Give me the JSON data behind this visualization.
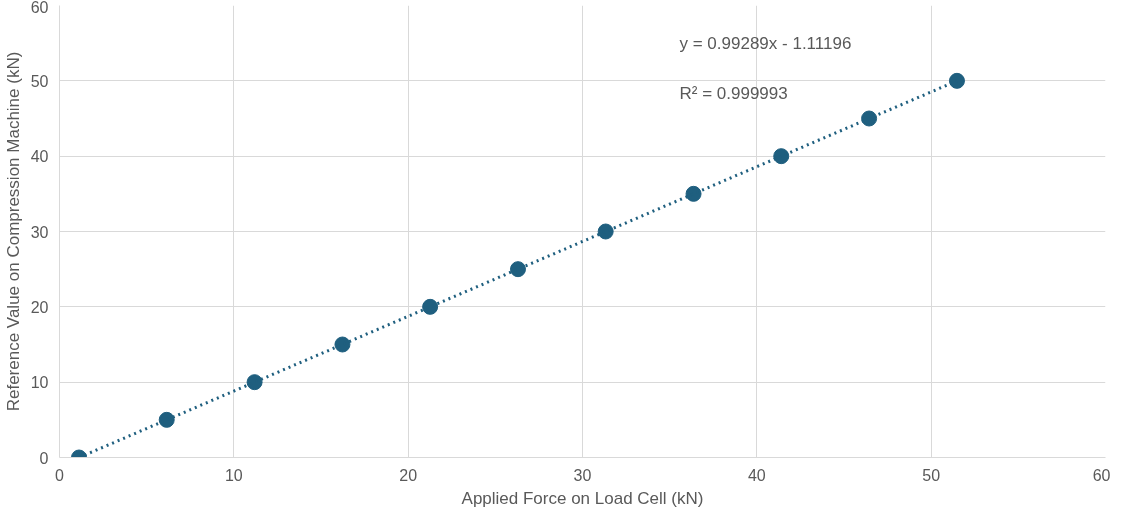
{
  "chart_data": {
    "type": "scatter",
    "xlabel": "Applied Force on Load Cell (kN)",
    "ylabel": "Reference Value on Compression Machine (kN)",
    "x": [
      1.12,
      6.15,
      11.19,
      16.23,
      21.26,
      26.3,
      31.33,
      36.37,
      41.4,
      46.44,
      51.48
    ],
    "series": [
      {
        "color": "#1f5f7f",
        "marker": "circle",
        "values": [
          0,
          5,
          10,
          15,
          20,
          25,
          30,
          35,
          40,
          45,
          50
        ]
      },
      {
        "type": "line",
        "color": "#1f5f7f",
        "line_style": "dotted",
        "x": [
          1.12,
          51.48
        ],
        "values": [
          0.0,
          50.0
        ]
      }
    ],
    "annotations": [
      "y = 0.99289x - 1.11196",
      "R² = 0.999993"
    ],
    "xlim": [
      0,
      60
    ],
    "ylim": [
      0,
      60
    ],
    "xticks": [
      0,
      10,
      20,
      30,
      40,
      50,
      60
    ],
    "yticks": [
      0,
      10,
      20,
      30,
      40,
      50,
      60
    ],
    "grid": true
  }
}
